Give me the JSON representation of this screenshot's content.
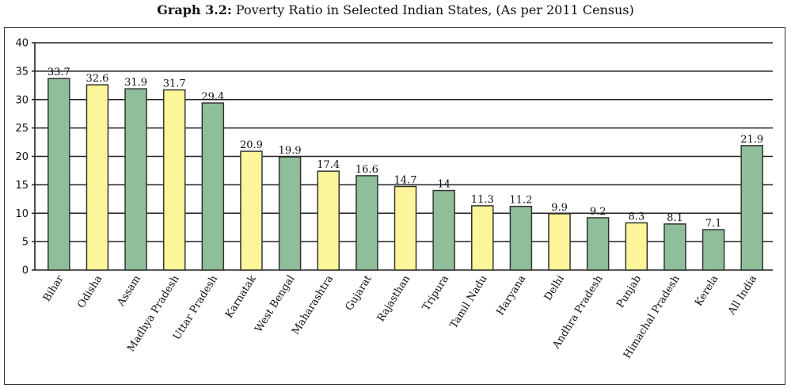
{
  "title": {
    "bold": "Graph 3.2:",
    "rest": " Poverty Ratio in Selected Indian States, (As per 2011 Census)"
  },
  "chart_data": {
    "type": "bar",
    "title": "Graph 3.2: Poverty Ratio in Selected Indian States, (As per 2011 Census)",
    "xlabel": "",
    "ylabel": "",
    "ylim": [
      0,
      40
    ],
    "yticks": [
      0,
      5,
      10,
      15,
      20,
      25,
      30,
      35,
      40
    ],
    "grid": true,
    "categories": [
      "Bihar",
      "Odisha",
      "Assam",
      "Madhya Pradesh",
      "Uttar Pradesh",
      "Karnatak",
      "West Bengal",
      "Maharashtra",
      "Gujarat",
      "Rajasthan",
      "Tripura",
      "Tamil Nadu",
      "Haryana",
      "Delhi",
      "Andhra Pradesh",
      "Punjab",
      "Himachal Pradesh",
      "Kerela",
      "All India"
    ],
    "values": [
      33.7,
      32.6,
      31.9,
      31.7,
      29.4,
      20.9,
      19.9,
      17.4,
      16.6,
      14.7,
      14,
      11.3,
      11.2,
      9.9,
      9.2,
      8.3,
      8.1,
      7.1,
      21.9
    ],
    "bar_colors": [
      "#8fbf9a",
      "#fdf59a",
      "#8fbf9a",
      "#fdf59a",
      "#8fbf9a",
      "#fdf59a",
      "#8fbf9a",
      "#fdf59a",
      "#8fbf9a",
      "#fdf59a",
      "#8fbf9a",
      "#fdf59a",
      "#8fbf9a",
      "#fdf59a",
      "#8fbf9a",
      "#fdf59a",
      "#8fbf9a",
      "#8fbf9a",
      "#8fbf9a"
    ],
    "colors": {
      "green": "#8fbf9a",
      "yellow": "#fdf59a",
      "outline": "#333333",
      "grid": "#222222"
    }
  }
}
